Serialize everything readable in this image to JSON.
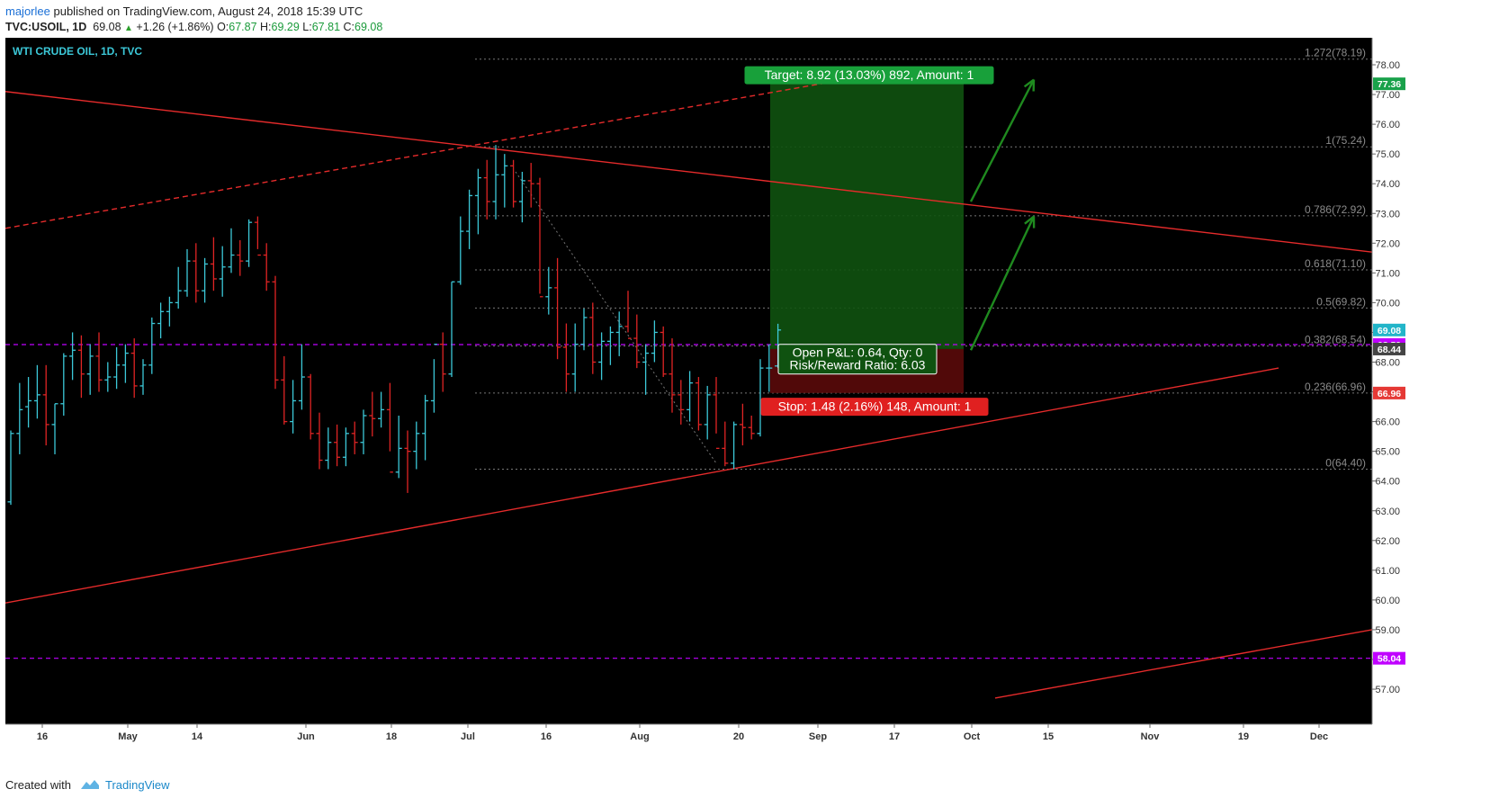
{
  "header": {
    "author": "majorlee",
    "published": "published on TradingView.com, August 24, 2018 15:39 UTC",
    "symbol": "TVC:USOIL, 1D",
    "last": "69.08",
    "change": "+1.26 (+1.86%)",
    "o_label": "O:",
    "o_val": "67.87",
    "h_label": "H:",
    "h_val": "69.29",
    "l_label": "L:",
    "l_val": "67.81",
    "c_label": "C:",
    "c_val": "69.08"
  },
  "footer": {
    "created_with": "Created with",
    "brand": "TradingView"
  },
  "chart_data": {
    "type": "ohlc",
    "title": "WTI CRUDE OIL, 1D, TVC",
    "ylim": [
      56.7,
      78.8
    ],
    "y_ticks": [
      57,
      58,
      59,
      60,
      61,
      62,
      63,
      64,
      65,
      66,
      67,
      68,
      69,
      70,
      71,
      72,
      73,
      74,
      75,
      76,
      77,
      78
    ],
    "x_ticks": [
      "16",
      "May",
      "14",
      "Jun",
      "18",
      "Jul",
      "16",
      "Aug",
      "20",
      "Sep",
      "17",
      "Oct",
      "15",
      "Nov",
      "19",
      "Dec"
    ],
    "bars": [
      [
        63.3,
        65.7,
        63.2,
        65.6
      ],
      [
        65.6,
        67.3,
        64.9,
        66.4
      ],
      [
        66.5,
        67.5,
        65.8,
        66.7
      ],
      [
        66.7,
        67.9,
        66.1,
        66.9
      ],
      [
        66.9,
        67.9,
        65.2,
        65.9
      ],
      [
        65.9,
        66.6,
        64.9,
        66.6
      ],
      [
        66.6,
        68.3,
        66.2,
        68.2
      ],
      [
        68.2,
        69.0,
        67.4,
        68.4
      ],
      [
        68.4,
        68.9,
        66.8,
        67.6
      ],
      [
        67.6,
        68.6,
        66.9,
        68.2
      ],
      [
        68.2,
        69.0,
        67.0,
        67.4
      ],
      [
        67.4,
        68.0,
        67.0,
        67.5
      ],
      [
        67.5,
        68.5,
        67.1,
        67.9
      ],
      [
        67.9,
        68.6,
        67.3,
        68.3
      ],
      [
        68.3,
        68.8,
        66.8,
        67.2
      ],
      [
        67.2,
        68.1,
        66.9,
        67.9
      ],
      [
        67.9,
        69.5,
        67.6,
        69.3
      ],
      [
        69.3,
        70.0,
        68.8,
        69.7
      ],
      [
        69.7,
        70.2,
        69.2,
        70.0
      ],
      [
        70.0,
        71.2,
        69.8,
        70.4
      ],
      [
        70.4,
        71.8,
        70.2,
        71.4
      ],
      [
        71.4,
        72.0,
        70.0,
        70.4
      ],
      [
        70.4,
        71.5,
        70.0,
        71.3
      ],
      [
        71.3,
        72.2,
        70.4,
        70.8
      ],
      [
        70.8,
        71.9,
        70.2,
        71.2
      ],
      [
        71.2,
        72.5,
        71.0,
        71.6
      ],
      [
        71.6,
        72.1,
        70.9,
        71.4
      ],
      [
        71.4,
        72.8,
        71.2,
        72.7
      ],
      [
        72.7,
        72.9,
        71.8,
        71.6
      ],
      [
        71.6,
        72.0,
        70.4,
        70.7
      ],
      [
        70.7,
        70.9,
        67.1,
        67.4
      ],
      [
        67.4,
        68.2,
        65.9,
        66.0
      ],
      [
        66.0,
        67.4,
        65.6,
        66.7
      ],
      [
        66.7,
        68.6,
        66.4,
        67.5
      ],
      [
        67.5,
        67.6,
        65.4,
        65.6
      ],
      [
        65.6,
        66.3,
        64.4,
        64.7
      ],
      [
        64.7,
        65.8,
        64.4,
        65.3
      ],
      [
        65.3,
        65.9,
        64.5,
        64.8
      ],
      [
        64.8,
        65.8,
        64.5,
        65.6
      ],
      [
        65.6,
        66.0,
        64.9,
        65.3
      ],
      [
        65.3,
        66.4,
        64.9,
        66.2
      ],
      [
        66.2,
        67.0,
        65.5,
        66.1
      ],
      [
        66.1,
        67.0,
        65.8,
        66.4
      ],
      [
        66.4,
        67.3,
        65.0,
        64.3
      ],
      [
        64.3,
        66.2,
        64.1,
        65.1
      ],
      [
        65.1,
        65.7,
        63.6,
        65.0
      ],
      [
        65.0,
        66.0,
        64.4,
        65.6
      ],
      [
        65.6,
        66.9,
        64.7,
        66.7
      ],
      [
        66.7,
        68.1,
        66.3,
        68.6
      ],
      [
        68.6,
        69.0,
        67.0,
        67.6
      ],
      [
        67.6,
        70.7,
        67.5,
        70.7
      ],
      [
        70.7,
        72.9,
        70.6,
        72.4
      ],
      [
        72.4,
        73.8,
        71.8,
        73.6
      ],
      [
        73.6,
        74.5,
        72.3,
        74.2
      ],
      [
        74.2,
        74.8,
        72.8,
        73.4
      ],
      [
        73.4,
        75.3,
        72.8,
        74.3
      ],
      [
        74.3,
        75.0,
        73.2,
        74.6
      ],
      [
        74.6,
        74.8,
        73.2,
        73.4
      ],
      [
        73.4,
        74.4,
        72.7,
        74.1
      ],
      [
        74.1,
        74.7,
        73.2,
        74.0
      ],
      [
        74.0,
        74.2,
        70.3,
        70.2
      ],
      [
        70.2,
        71.2,
        69.6,
        70.5
      ],
      [
        70.5,
        71.5,
        68.1,
        68.5
      ],
      [
        68.5,
        69.3,
        67.0,
        67.6
      ],
      [
        67.6,
        69.3,
        67.0,
        68.6
      ],
      [
        68.6,
        69.8,
        68.4,
        69.5
      ],
      [
        69.5,
        70.0,
        67.6,
        68.0
      ],
      [
        68.0,
        69.0,
        67.4,
        68.7
      ],
      [
        68.7,
        69.2,
        67.9,
        69.0
      ],
      [
        69.0,
        69.7,
        68.2,
        69.2
      ],
      [
        69.2,
        70.4,
        69.0,
        68.8
      ],
      [
        68.8,
        69.6,
        67.8,
        68.0
      ],
      [
        68.0,
        68.6,
        66.9,
        68.3
      ],
      [
        68.3,
        69.4,
        68.0,
        69.0
      ],
      [
        69.0,
        69.2,
        67.5,
        67.6
      ],
      [
        67.6,
        68.8,
        66.3,
        66.9
      ],
      [
        66.9,
        67.4,
        65.9,
        66.4
      ],
      [
        66.4,
        67.7,
        66.0,
        67.3
      ],
      [
        67.3,
        67.5,
        65.7,
        65.9
      ],
      [
        65.9,
        67.2,
        65.4,
        66.9
      ],
      [
        66.9,
        67.5,
        65.6,
        65.1
      ],
      [
        65.1,
        66.0,
        64.5,
        64.6
      ],
      [
        64.6,
        66.0,
        64.4,
        65.9
      ],
      [
        65.9,
        66.6,
        65.2,
        65.8
      ],
      [
        65.8,
        66.2,
        65.4,
        65.6
      ],
      [
        65.6,
        68.1,
        65.5,
        67.8
      ],
      [
        67.8,
        68.6,
        67.0,
        67.8
      ],
      [
        67.87,
        69.29,
        67.81,
        69.08
      ]
    ],
    "horizontal_levels": [
      {
        "label": "68.59",
        "value": 68.59,
        "color": "#c000ff"
      },
      {
        "label": "58.04",
        "value": 58.04,
        "color": "#c000ff"
      }
    ],
    "fibonacci": [
      {
        "label": "1.272(78.19)",
        "value": 78.19
      },
      {
        "label": "1(75.24)",
        "value": 75.24
      },
      {
        "label": "0.786(72.92)",
        "value": 72.92
      },
      {
        "label": "0.618(71.10)",
        "value": 71.1
      },
      {
        "label": "0.5(69.82)",
        "value": 69.82
      },
      {
        "label": "0.382(68.54)",
        "value": 68.54
      },
      {
        "label": "0.236(66.96)",
        "value": 66.96
      },
      {
        "label": "0(64.40)",
        "value": 64.4
      }
    ],
    "position": {
      "entry": 68.44,
      "target": 77.36,
      "stop": 66.96,
      "target_label": "Target: 8.92 (13.03%) 892, Amount: 1",
      "stop_label": "Stop: 1.48 (2.16%) 148, Amount: 1",
      "pnl_label": "Open P&L: 0.64, Qty: 0",
      "rr_label": "Risk/Reward Ratio: 6.03"
    },
    "price_tags": [
      {
        "label": "77.36",
        "value": 77.36,
        "color": "#19a14a"
      },
      {
        "label": "69.08",
        "value": 69.08,
        "color": "#22b5c9"
      },
      {
        "label": "68.59",
        "value": 68.59,
        "color": "#c000ff"
      },
      {
        "label": "68.44",
        "value": 68.44,
        "color": "#444444"
      },
      {
        "label": "66.96",
        "value": 66.96,
        "color": "#e53935"
      },
      {
        "label": "58.04",
        "value": 58.04,
        "color": "#c000ff"
      }
    ],
    "colors": {
      "background": "#000000",
      "up": "#3cc8d8",
      "down": "#e02424",
      "trend": "#e52b2b",
      "arrow": "#1f8a1f"
    }
  }
}
